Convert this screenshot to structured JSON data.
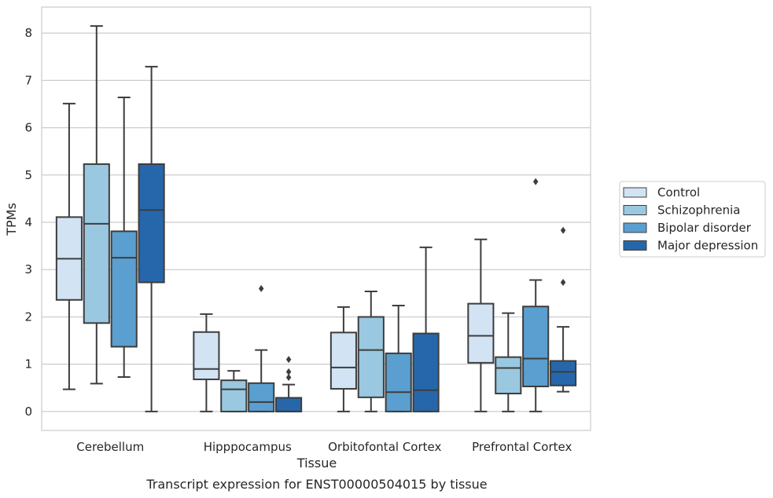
{
  "chart_data": {
    "type": "box",
    "caption": "Transcript expression for ENST00000504015 by tissue",
    "xlabel": "Tissue",
    "ylabel": "TPMs",
    "ylim": [
      -0.4,
      8.55
    ],
    "yticks": [
      0,
      1,
      2,
      3,
      4,
      5,
      6,
      7,
      8
    ],
    "grid": "horizontal",
    "legend_position": "right",
    "categories": [
      "Cerebellum",
      "Hipppocampus",
      "Orbitofontal Cortex",
      "Prefrontal Cortex"
    ],
    "series": [
      {
        "name": "Control",
        "color": "#d2e3f3",
        "boxes": [
          {
            "whislo": 0.47,
            "q1": 2.36,
            "med": 3.23,
            "q3": 4.11,
            "whishi": 6.51,
            "fliers": []
          },
          {
            "whislo": 0.0,
            "q1": 0.68,
            "med": 0.9,
            "q3": 1.68,
            "whishi": 2.06,
            "fliers": []
          },
          {
            "whislo": 0.0,
            "q1": 0.48,
            "med": 0.93,
            "q3": 1.67,
            "whishi": 2.21,
            "fliers": []
          },
          {
            "whislo": 0.0,
            "q1": 1.03,
            "med": 1.6,
            "q3": 2.28,
            "whishi": 3.64,
            "fliers": []
          }
        ]
      },
      {
        "name": "Schizophrenia",
        "color": "#9ac8e0",
        "boxes": [
          {
            "whislo": 0.59,
            "q1": 1.87,
            "med": 3.97,
            "q3": 5.23,
            "whishi": 8.15,
            "fliers": []
          },
          {
            "whislo": 0.0,
            "q1": 0.0,
            "med": 0.47,
            "q3": 0.66,
            "whishi": 0.86,
            "fliers": []
          },
          {
            "whislo": 0.0,
            "q1": 0.3,
            "med": 1.3,
            "q3": 2.0,
            "whishi": 2.54,
            "fliers": []
          },
          {
            "whislo": 0.0,
            "q1": 0.38,
            "med": 0.92,
            "q3": 1.15,
            "whishi": 2.08,
            "fliers": []
          }
        ]
      },
      {
        "name": "Bipolar disorder",
        "color": "#5a9fcf",
        "boxes": [
          {
            "whislo": 0.73,
            "q1": 1.37,
            "med": 3.25,
            "q3": 3.81,
            "whishi": 6.64,
            "fliers": []
          },
          {
            "whislo": 0.0,
            "q1": 0.0,
            "med": 0.2,
            "q3": 0.6,
            "whishi": 1.3,
            "fliers": [
              2.6
            ]
          },
          {
            "whislo": 0.0,
            "q1": 0.0,
            "med": 0.41,
            "q3": 1.23,
            "whishi": 2.24,
            "fliers": []
          },
          {
            "whislo": 0.0,
            "q1": 0.53,
            "med": 1.12,
            "q3": 2.22,
            "whishi": 2.78,
            "fliers": [
              4.86
            ]
          }
        ]
      },
      {
        "name": "Major depression",
        "color": "#2667ab",
        "boxes": [
          {
            "whislo": 0.0,
            "q1": 2.73,
            "med": 4.26,
            "q3": 5.23,
            "whishi": 7.29,
            "fliers": []
          },
          {
            "whislo": 0.0,
            "q1": 0.0,
            "med": 0.0,
            "q3": 0.29,
            "whishi": 0.57,
            "fliers": [
              0.72,
              0.84,
              1.1
            ]
          },
          {
            "whislo": 0.0,
            "q1": 0.0,
            "med": 0.45,
            "q3": 1.65,
            "whishi": 3.47,
            "fliers": []
          },
          {
            "whislo": 0.42,
            "q1": 0.55,
            "med": 0.84,
            "q3": 1.07,
            "whishi": 1.79,
            "fliers": [
              2.73,
              3.83
            ]
          }
        ]
      }
    ]
  }
}
